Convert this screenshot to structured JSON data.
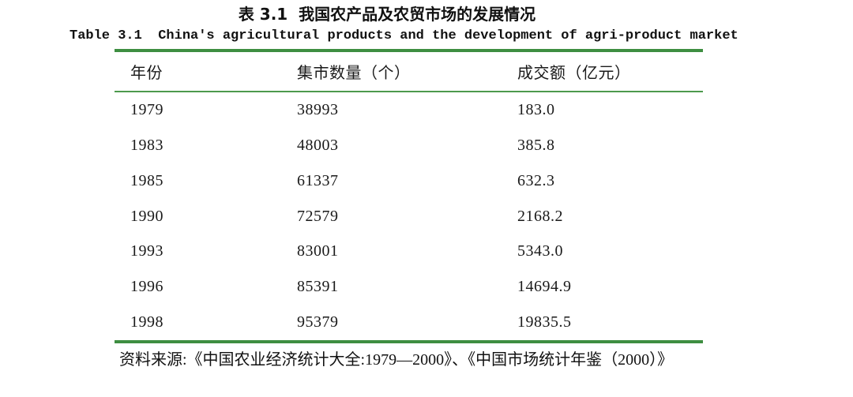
{
  "titles": {
    "zh": "表 3.1  我国农产品及农贸市场的发展情况",
    "en": "Table 3.1  China's agricultural products and the development of agri-product market"
  },
  "table": {
    "rule_color": "#3e8e41",
    "headers": [
      "年份",
      "集市数量（个）",
      "成交额（亿元）"
    ],
    "rows": [
      [
        "1979",
        "38993",
        "183.0"
      ],
      [
        "1983",
        "48003",
        "385.8"
      ],
      [
        "1985",
        "61337",
        "632.3"
      ],
      [
        "1990",
        "72579",
        "2168.2"
      ],
      [
        "1993",
        "83001",
        "5343.0"
      ],
      [
        "1996",
        "85391",
        "14694.9"
      ],
      [
        "1998",
        "95379",
        "19835.5"
      ]
    ]
  },
  "source_note": "资料来源:《中国农业经济统计大全:1979—2000》、《中国市场统计年鉴（2000）》"
}
